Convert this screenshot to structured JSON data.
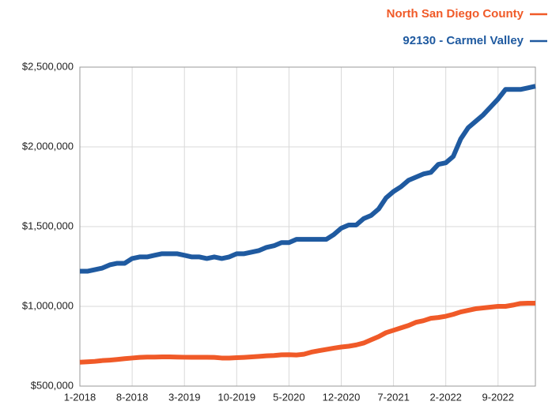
{
  "chart_data": {
    "type": "line",
    "categories": [
      "1-2018",
      null,
      null,
      null,
      null,
      null,
      null,
      "8-2018",
      null,
      null,
      null,
      null,
      null,
      null,
      "3-2019",
      null,
      null,
      null,
      null,
      null,
      null,
      "10-2019",
      null,
      null,
      null,
      null,
      null,
      null,
      "5-2020",
      null,
      null,
      null,
      null,
      null,
      null,
      "12-2020",
      null,
      null,
      null,
      null,
      null,
      null,
      "7-2021",
      null,
      null,
      null,
      null,
      null,
      null,
      "2-2022",
      null,
      null,
      null,
      null,
      null,
      null,
      "9-2022",
      null,
      null,
      null,
      null,
      null
    ],
    "series": [
      {
        "name": "North San Diego County",
        "color": "#f05a28",
        "values": [
          650000,
          652000,
          655000,
          660000,
          663000,
          667000,
          672000,
          676000,
          680000,
          682000,
          682000,
          683000,
          683000,
          682000,
          681000,
          681000,
          681000,
          681000,
          680000,
          676000,
          676000,
          678000,
          680000,
          683000,
          686000,
          690000,
          692000,
          696000,
          697000,
          695000,
          700000,
          713000,
          722000,
          730000,
          738000,
          745000,
          750000,
          758000,
          770000,
          790000,
          810000,
          835000,
          850000,
          865000,
          880000,
          900000,
          910000,
          925000,
          930000,
          938000,
          950000,
          965000,
          975000,
          985000,
          990000,
          995000,
          1000000,
          1000000,
          1008000,
          1018000,
          1020000,
          1020000
        ]
      },
      {
        "name": "92130 - Carmel Valley",
        "color": "#1f5aa0",
        "values": [
          1220000,
          1220000,
          1230000,
          1240000,
          1260000,
          1270000,
          1270000,
          1300000,
          1310000,
          1310000,
          1320000,
          1330000,
          1330000,
          1330000,
          1320000,
          1310000,
          1310000,
          1300000,
          1310000,
          1300000,
          1310000,
          1330000,
          1330000,
          1340000,
          1350000,
          1370000,
          1380000,
          1400000,
          1400000,
          1420000,
          1420000,
          1420000,
          1420000,
          1420000,
          1450000,
          1490000,
          1510000,
          1510000,
          1550000,
          1570000,
          1610000,
          1680000,
          1720000,
          1750000,
          1790000,
          1810000,
          1830000,
          1840000,
          1890000,
          1900000,
          1940000,
          2050000,
          2120000,
          2160000,
          2200000,
          2250000,
          2300000,
          2360000,
          2360000,
          2360000,
          2370000,
          2380000
        ]
      }
    ],
    "ylim": [
      500000,
      2500000
    ],
    "yticks": [
      {
        "value": 500000,
        "label": "$500,000"
      },
      {
        "value": 1000000,
        "label": "$1,000,000"
      },
      {
        "value": 1500000,
        "label": "$1,500,000"
      },
      {
        "value": 2000000,
        "label": "$2,000,000"
      },
      {
        "value": 2500000,
        "label": "$2,500,000"
      }
    ],
    "grid": true
  }
}
